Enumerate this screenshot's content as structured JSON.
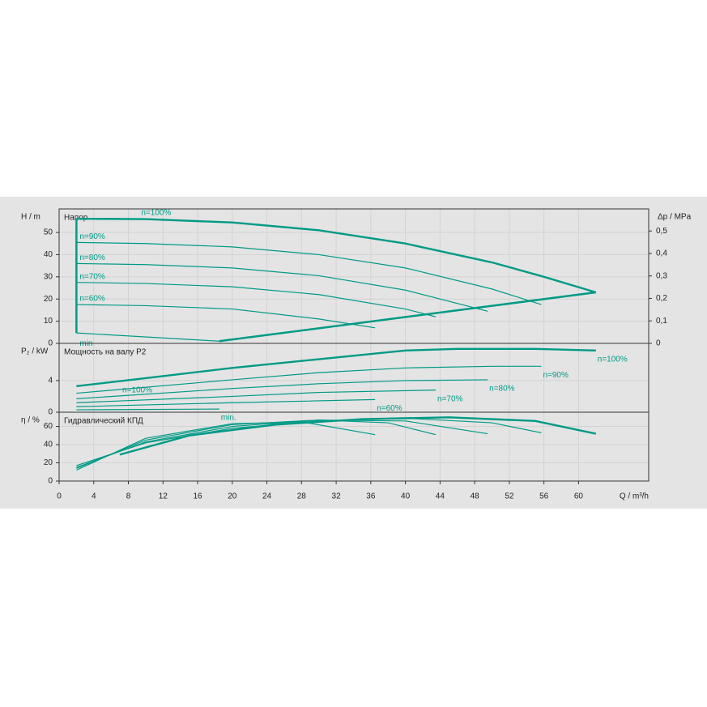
{
  "chart_data": [
    {
      "type": "line",
      "title": "Напор",
      "ylabel": "H / m",
      "y2label": "Δp / MPa",
      "ylim": [
        0,
        60.6
      ],
      "yticks": [
        0,
        10,
        20,
        30,
        40,
        50
      ],
      "y2lim": [
        0,
        0.598
      ],
      "y2ticks": [
        0,
        {
          "value": 0.1,
          "label": "0,1"
        },
        {
          "value": 0.2,
          "label": "0,2"
        },
        {
          "value": 0.3,
          "label": "0,3"
        },
        {
          "value": 0.4,
          "label": "0,4"
        },
        {
          "value": 0.5,
          "label": "0,5"
        }
      ],
      "grid": true,
      "series": [
        {
          "name": "n=100%",
          "color": "#009a86",
          "x": [
            2,
            10,
            20,
            30,
            40,
            50,
            56,
            62
          ],
          "values": [
            56.2,
            56,
            54.5,
            51,
            45,
            36.5,
            30,
            23
          ]
        },
        {
          "name": "n=90%",
          "color": "#009a86",
          "x": [
            2,
            10,
            20,
            30,
            40,
            50,
            55.7
          ],
          "values": [
            45.5,
            45,
            43.5,
            40,
            34,
            24.5,
            17.5
          ]
        },
        {
          "name": "n=80%",
          "color": "#009a86",
          "x": [
            2,
            10,
            20,
            30,
            40,
            49.5
          ],
          "values": [
            36,
            35.5,
            34,
            30.5,
            24,
            14.5
          ]
        },
        {
          "name": "n=70%",
          "color": "#009a86",
          "x": [
            2,
            10,
            20,
            30,
            40,
            43.5
          ],
          "values": [
            27.5,
            27,
            25.5,
            22,
            15.5,
            12
          ]
        },
        {
          "name": "n=60%",
          "color": "#009a86",
          "x": [
            2,
            10,
            20,
            30,
            36.5
          ],
          "values": [
            17.5,
            17,
            15.5,
            11,
            7
          ]
        },
        {
          "name": "min.",
          "color": "#009a86",
          "x": [
            2,
            18.5
          ],
          "values": [
            4.7,
            1
          ]
        }
      ],
      "boundaries": [
        {
          "x": [
            2,
            2
          ],
          "values": [
            56.2,
            4.7
          ]
        },
        {
          "x": [
            18.5,
            62
          ],
          "values": [
            1,
            23
          ]
        }
      ]
    },
    {
      "type": "line",
      "title": "Мощность на валу P2",
      "ylabel": "P₂ / kW",
      "ylim": [
        0,
        8.7
      ],
      "yticks": [
        0,
        4
      ],
      "grid": true,
      "series": [
        {
          "name": "n=100%",
          "color": "#009a86",
          "x": [
            2,
            10,
            20,
            30,
            40,
            46,
            55,
            62
          ],
          "values": [
            3.3,
            4.3,
            5.6,
            6.7,
            7.8,
            8.0,
            8.0,
            7.8
          ]
        },
        {
          "name": "n=90%",
          "color": "#009a86",
          "x": [
            2,
            20,
            30,
            40,
            50,
            55.7
          ],
          "values": [
            2.4,
            4.1,
            5.0,
            5.6,
            5.8,
            5.8
          ]
        },
        {
          "name": "n=80%",
          "color": "#009a86",
          "x": [
            2,
            20,
            30,
            40,
            49.5
          ],
          "values": [
            1.7,
            3.0,
            3.6,
            4.0,
            4.1
          ]
        },
        {
          "name": "n=70%",
          "color": "#009a86",
          "x": [
            2,
            20,
            30,
            43.5
          ],
          "values": [
            1.2,
            2.0,
            2.5,
            2.8
          ]
        },
        {
          "name": "n=60%",
          "color": "#009a86",
          "x": [
            2,
            20,
            36.5
          ],
          "values": [
            0.7,
            1.2,
            1.6
          ]
        },
        {
          "name": "min.",
          "color": "#009a86",
          "x": [
            2,
            18.5
          ],
          "values": [
            0.3,
            0.4
          ]
        }
      ],
      "annotations": [
        {
          "text": "n=100%",
          "x": 7.3,
          "y": 2.8
        }
      ]
    },
    {
      "type": "line",
      "title": "Гидравлический КПД",
      "ylabel": "η / %",
      "ylim": [
        0,
        75.6
      ],
      "yticks": [
        0,
        20,
        40,
        60
      ],
      "grid": true,
      "xlabel": "Q / m³/h",
      "xlim": [
        0,
        68.1
      ],
      "xticks": [
        0,
        4,
        8,
        12,
        16,
        20,
        24,
        28,
        32,
        36,
        40,
        44,
        48,
        52,
        56,
        60
      ],
      "series": [
        {
          "color": "#009a86",
          "x": [
            7,
            15,
            25,
            35,
            45,
            55,
            62
          ],
          "values": [
            29,
            50,
            62,
            68,
            70,
            66,
            52
          ]
        },
        {
          "color": "#009a86",
          "x": [
            2,
            10,
            20,
            30,
            40,
            50,
            55.7
          ],
          "values": [
            17,
            42,
            58,
            66,
            69,
            64,
            53
          ]
        },
        {
          "color": "#009a86",
          "x": [
            2,
            10,
            20,
            30,
            40,
            49.5
          ],
          "values": [
            15,
            43,
            60,
            67,
            66,
            52
          ]
        },
        {
          "color": "#009a86",
          "x": [
            2,
            10,
            20,
            30,
            38,
            43.5
          ],
          "values": [
            14,
            45,
            62,
            67,
            64,
            51
          ]
        },
        {
          "color": "#009a86",
          "x": [
            2,
            10,
            20,
            28,
            36.5
          ],
          "values": [
            12,
            47,
            63,
            65,
            51
          ]
        }
      ]
    }
  ]
}
